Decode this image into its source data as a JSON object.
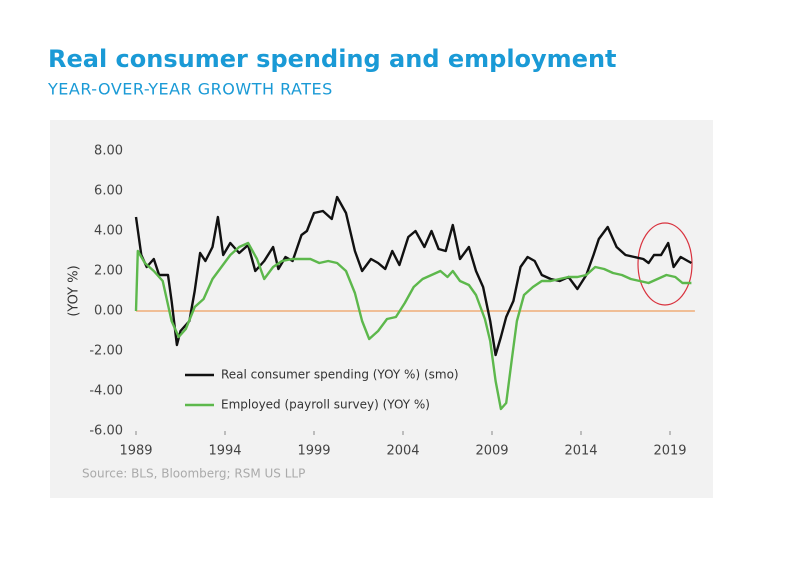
{
  "chart_data": {
    "type": "line",
    "title": "Real consumer spending and employment",
    "subtitle": "YEAR-OVER-YEAR GROWTH RATES",
    "y_label": "(YOY %)",
    "source": "Source: BLS, Bloomberg; RSM US LLP",
    "xlim": [
      1989,
      2020.4
    ],
    "xticks": [
      1989,
      1994,
      1999,
      2004,
      2009,
      2014,
      2019
    ],
    "ylim": [
      -6,
      8
    ],
    "yticks": [
      {
        "value": 8,
        "label": "8.00"
      },
      {
        "value": 6,
        "label": "6.00"
      },
      {
        "value": 4,
        "label": "4.00"
      },
      {
        "value": 2,
        "label": "2.00"
      },
      {
        "value": 0,
        "label": "0.00"
      },
      {
        "value": -2,
        "label": "-2.00"
      },
      {
        "value": -4,
        "label": "-4.00"
      },
      {
        "value": -6,
        "label": "-6.00"
      }
    ],
    "zero_line_color": "#f0a060",
    "series": [
      {
        "name": "Real consumer spending (YOY %) (smo)",
        "color": "#111111",
        "x": [
          1989.0,
          1989.3,
          1989.6,
          1990.0,
          1990.3,
          1990.8,
          1991.0,
          1991.3,
          1991.5,
          1992.0,
          1992.3,
          1992.6,
          1992.9,
          1993.3,
          1993.6,
          1993.9,
          1994.3,
          1994.8,
          1995.3,
          1995.7,
          1996.2,
          1996.7,
          1997.0,
          1997.4,
          1997.8,
          1998.3,
          1998.6,
          1999.0,
          1999.5,
          2000.0,
          2000.3,
          2000.8,
          2001.3,
          2001.7,
          2002.2,
          2002.6,
          2003.0,
          2003.4,
          2003.8,
          2004.3,
          2004.7,
          2005.2,
          2005.6,
          2006.0,
          2006.4,
          2006.8,
          2007.2,
          2007.7,
          2008.1,
          2008.5,
          2008.9,
          2009.2,
          2009.5,
          2009.8,
          2010.2,
          2010.6,
          2011.0,
          2011.4,
          2011.8,
          2012.3,
          2012.8,
          2013.3,
          2013.8,
          2014.3,
          2014.7,
          2015.0,
          2015.5,
          2016.0,
          2016.5,
          2017.0,
          2017.5,
          2017.8,
          2018.1,
          2018.5,
          2018.9,
          2019.2,
          2019.6,
          2020.0,
          2020.2
        ],
        "values": [
          4.7,
          2.8,
          2.2,
          2.6,
          1.8,
          1.8,
          0.5,
          -1.7,
          -1.0,
          -0.5,
          1.0,
          2.9,
          2.5,
          3.2,
          4.7,
          2.8,
          3.4,
          2.9,
          3.3,
          2.0,
          2.5,
          3.2,
          2.1,
          2.7,
          2.5,
          3.8,
          4.0,
          4.9,
          5.0,
          4.6,
          5.7,
          4.9,
          3.0,
          2.0,
          2.6,
          2.4,
          2.1,
          3.0,
          2.3,
          3.7,
          4.0,
          3.2,
          4.0,
          3.1,
          3.0,
          4.3,
          2.6,
          3.2,
          2.0,
          1.2,
          -0.5,
          -2.2,
          -1.3,
          -0.3,
          0.5,
          2.2,
          2.7,
          2.5,
          1.8,
          1.6,
          1.5,
          1.7,
          1.1,
          1.8,
          2.8,
          3.6,
          4.2,
          3.2,
          2.8,
          2.7,
          2.6,
          2.4,
          2.8,
          2.8,
          3.4,
          2.2,
          2.7,
          2.5,
          2.4
        ]
      },
      {
        "name": "Employed (payroll survey) (YOY %)",
        "color": "#5db84c",
        "x": [
          1989.0,
          1989.1,
          1989.5,
          1990.0,
          1990.5,
          1991.0,
          1991.4,
          1991.8,
          1992.3,
          1992.8,
          1993.3,
          1993.8,
          1994.3,
          1994.8,
          1995.3,
          1995.8,
          1996.2,
          1996.7,
          1997.2,
          1997.8,
          1998.3,
          1998.8,
          1999.3,
          1999.8,
          2000.3,
          2000.8,
          2001.3,
          2001.7,
          2002.1,
          2002.6,
          2003.1,
          2003.6,
          2004.1,
          2004.6,
          2005.1,
          2005.6,
          2006.1,
          2006.5,
          2006.8,
          2007.2,
          2007.7,
          2008.1,
          2008.6,
          2008.9,
          2009.2,
          2009.5,
          2009.8,
          2010.1,
          2010.4,
          2010.8,
          2011.3,
          2011.8,
          2012.3,
          2012.8,
          2013.3,
          2013.8,
          2014.3,
          2014.8,
          2015.3,
          2015.8,
          2016.3,
          2016.8,
          2017.3,
          2017.8,
          2018.3,
          2018.8,
          2019.3,
          2019.7,
          2020.2
        ],
        "values": [
          0,
          3.0,
          2.4,
          2.0,
          1.5,
          -0.5,
          -1.3,
          -0.9,
          0.2,
          0.6,
          1.6,
          2.2,
          2.8,
          3.2,
          3.4,
          2.6,
          1.6,
          2.2,
          2.5,
          2.6,
          2.6,
          2.6,
          2.4,
          2.5,
          2.4,
          2.0,
          0.9,
          -0.5,
          -1.4,
          -1.0,
          -0.4,
          -0.3,
          0.4,
          1.2,
          1.6,
          1.8,
          2.0,
          1.7,
          2.0,
          1.5,
          1.3,
          0.8,
          -0.4,
          -1.5,
          -3.5,
          -4.9,
          -4.6,
          -2.5,
          -0.5,
          0.8,
          1.2,
          1.5,
          1.5,
          1.6,
          1.7,
          1.7,
          1.8,
          2.2,
          2.1,
          1.9,
          1.8,
          1.6,
          1.5,
          1.4,
          1.6,
          1.8,
          1.7,
          1.4,
          1.4
        ]
      }
    ]
  }
}
